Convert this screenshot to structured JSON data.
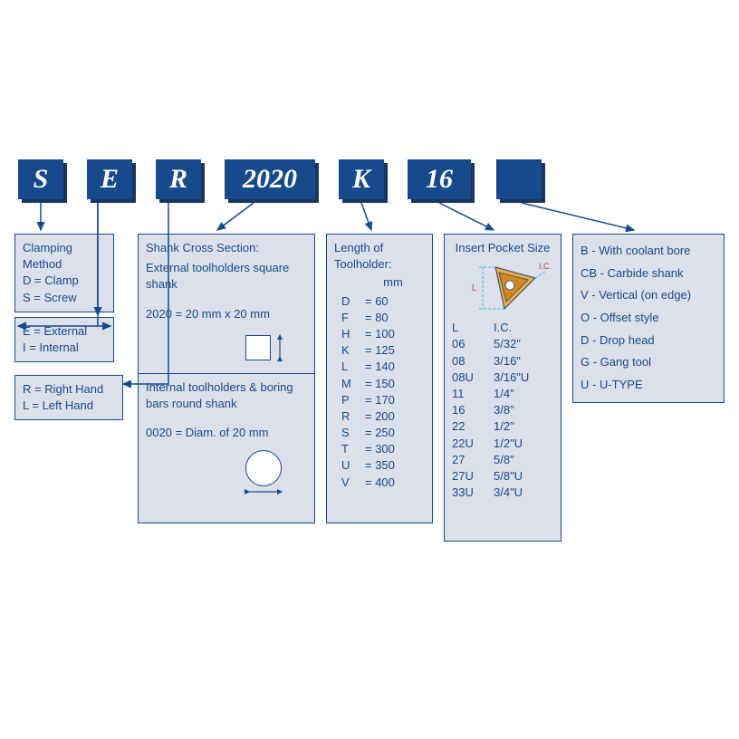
{
  "colors": {
    "primary": "#164a8a",
    "shadow": "#1a3560",
    "box_bg": "#dbe0ea"
  },
  "codes": {
    "c1": "S",
    "c2": "E",
    "c3": "R",
    "c4": "2020",
    "c5": "K",
    "c6": "16",
    "c7": ""
  },
  "box1": {
    "title": "Clamping Method",
    "l1": "D =  Clamp",
    "l2": "S  = Screw"
  },
  "box2": {
    "l1": "E = External",
    "l2": "I =  Internal"
  },
  "box3": {
    "l1": "R = Right Hand",
    "l2": "L = Left Hand"
  },
  "box4": {
    "t1": "Shank Cross Section:",
    "t2": "External toolholders square shank",
    "t3": "2020 = 20 mm x 20 mm",
    "t4": "Internal toolholders & boring bars round shank",
    "t5": "0020 = Diam. of 20 mm"
  },
  "box5": {
    "title": "Length of Toolholder:",
    "unit": "mm",
    "rows": [
      [
        "D",
        "= 60"
      ],
      [
        "F",
        "= 80"
      ],
      [
        "H",
        "= 100"
      ],
      [
        "K",
        "= 125"
      ],
      [
        "L",
        "= 140"
      ],
      [
        "M",
        "= 150"
      ],
      [
        "P",
        "= 170"
      ],
      [
        "R",
        "= 200"
      ],
      [
        "S",
        "= 250"
      ],
      [
        "T",
        "= 300"
      ],
      [
        "U",
        "= 350"
      ],
      [
        "V",
        "= 400"
      ]
    ]
  },
  "box6": {
    "title": "Insert Pocket Size",
    "h1": "L",
    "h2": "I.C.",
    "diag_L": "L",
    "diag_IC": "I.C.",
    "rows": [
      [
        "06",
        "5/32\""
      ],
      [
        "08",
        "3/16\""
      ],
      [
        "08U",
        "3/16\"U"
      ],
      [
        "11",
        "1/4\""
      ],
      [
        "16",
        "3/8\""
      ],
      [
        "22",
        "1/2\""
      ],
      [
        "22U",
        "1/2\"U"
      ],
      [
        "27",
        "5/8\""
      ],
      [
        "27U",
        "5/8\"U"
      ],
      [
        "33U",
        "3/4\"U"
      ]
    ]
  },
  "box7": {
    "l1": "B -  With coolant bore",
    "l2": "CB - Carbide shank",
    "l3": "V - Vertical (on edge)",
    "l4": "O - Offset style",
    "l5": "D - Drop head",
    "l6": "G - Gang tool",
    "l7": "U - U-TYPE"
  }
}
